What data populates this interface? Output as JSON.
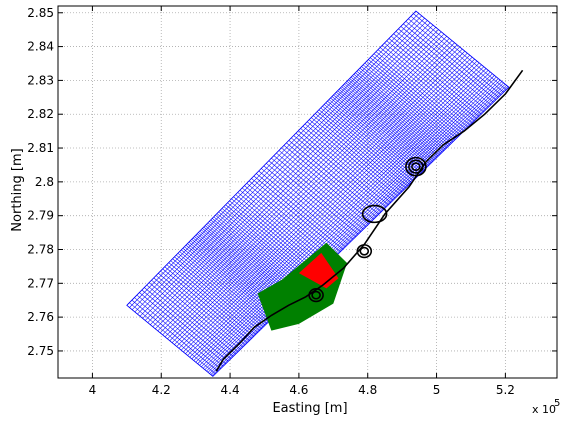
{
  "chart_data": {
    "type": "mesh_map",
    "xlabel": "Easting [m]",
    "ylabel": "Northing [m]",
    "x_exponent_label": "x 10",
    "x_exponent_power": "5",
    "xlim": [
      3.9,
      5.35
    ],
    "ylim": [
      2.742,
      2.852
    ],
    "x_ticks": [
      4,
      4.2,
      4.4,
      4.6,
      4.8,
      5,
      5.2
    ],
    "y_ticks": [
      2.75,
      2.76,
      2.77,
      2.78,
      2.79,
      2.8,
      2.81,
      2.82,
      2.83,
      2.84,
      2.85
    ],
    "x_tick_labels": [
      "4",
      "4.2",
      "4.4",
      "4.6",
      "4.8",
      "5",
      "5.2"
    ],
    "y_tick_labels": [
      "2.75",
      "2.76",
      "2.77",
      "2.78",
      "2.79",
      "2.8",
      "2.81",
      "2.82",
      "2.83",
      "2.84",
      "2.85"
    ],
    "grid": true,
    "grid_style": "dotted",
    "series": [
      {
        "kind": "curvilinear_grid",
        "color": "#0000ff",
        "outline": [
          [
            4.35,
            2.7425
          ],
          [
            4.1,
            2.7635
          ],
          [
            4.94,
            2.8505
          ],
          [
            5.21,
            2.828
          ],
          [
            4.35,
            2.7425
          ]
        ],
        "cross_lines": 150,
        "along_lines": 40
      },
      {
        "kind": "region_fill",
        "color": "#008000",
        "polygon": [
          [
            4.52,
            2.756
          ],
          [
            4.48,
            2.767
          ],
          [
            4.55,
            2.771
          ],
          [
            4.68,
            2.782
          ],
          [
            4.74,
            2.776
          ],
          [
            4.7,
            2.764
          ],
          [
            4.6,
            2.758
          ],
          [
            4.52,
            2.756
          ]
        ]
      },
      {
        "kind": "region_fill",
        "color": "#ff0000",
        "polygon": [
          [
            4.6,
            2.773
          ],
          [
            4.665,
            2.779
          ],
          [
            4.715,
            2.7715
          ],
          [
            4.68,
            2.7685
          ],
          [
            4.6,
            2.773
          ]
        ]
      },
      {
        "kind": "coastline",
        "color": "#000000",
        "points": [
          [
            4.36,
            2.744
          ],
          [
            4.38,
            2.7475
          ],
          [
            4.43,
            2.7525
          ],
          [
            4.47,
            2.757
          ],
          [
            4.52,
            2.7605
          ],
          [
            4.57,
            2.7635
          ],
          [
            4.62,
            2.766
          ],
          [
            4.67,
            2.7695
          ],
          [
            4.73,
            2.7745
          ],
          [
            4.79,
            2.7815
          ],
          [
            4.85,
            2.7905
          ],
          [
            4.92,
            2.7985
          ],
          [
            4.97,
            2.806
          ],
          [
            5.02,
            2.811
          ],
          [
            5.08,
            2.815
          ],
          [
            5.14,
            2.82
          ],
          [
            5.2,
            2.826
          ],
          [
            5.25,
            2.833
          ]
        ]
      },
      {
        "kind": "closed_contours",
        "color": "#000000",
        "centers": [
          [
            4.94,
            2.8045
          ],
          [
            4.82,
            2.7905
          ],
          [
            4.79,
            2.7795
          ],
          [
            4.65,
            2.7665
          ]
        ]
      }
    ]
  }
}
